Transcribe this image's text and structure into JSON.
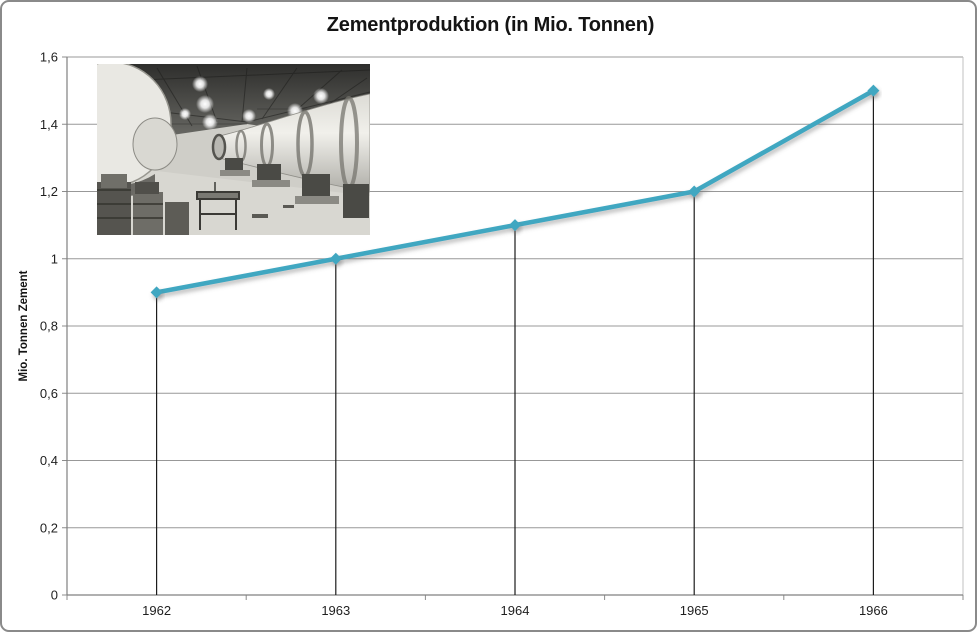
{
  "window": {
    "background": "#ffffff",
    "frame_border_color": "#8a8a8a"
  },
  "chart_data": {
    "type": "line",
    "title": "Zementproduktion (in Mio. Tonnen)",
    "categories": [
      "1962",
      "1963",
      "1964",
      "1965",
      "1966"
    ],
    "series": [
      {
        "name": "Zementproduktion",
        "values": [
          0.9,
          1.0,
          1.1,
          1.2,
          1.5
        ]
      }
    ],
    "xlabel": "",
    "ylabel": "Mio. Tonnen Zement",
    "ylim": [
      0,
      1.6
    ],
    "ytick_step": 0.2,
    "ytick_labels": [
      "0",
      "0,2",
      "0,4",
      "0,6",
      "0,8",
      "1",
      "1,2",
      "1,4",
      "1,6"
    ],
    "grid": "horizontal",
    "drop_lines": true,
    "legend_position": "none",
    "marker": "diamond",
    "annotations": [
      "black-and-white photograph of a cement plant interior with rotary kilns, upper-left of plot area"
    ]
  },
  "style": {
    "line_color": "#3fa7c1",
    "marker_color": "#3fa7c1",
    "gridline_color": "#989898",
    "axis_color": "#808080",
    "tick_color": "#8c8c8c",
    "drop_line_color": "#1c1c1c",
    "text_color": "#1f1f1f",
    "plot_right_border_color": "#c2c2c2"
  }
}
